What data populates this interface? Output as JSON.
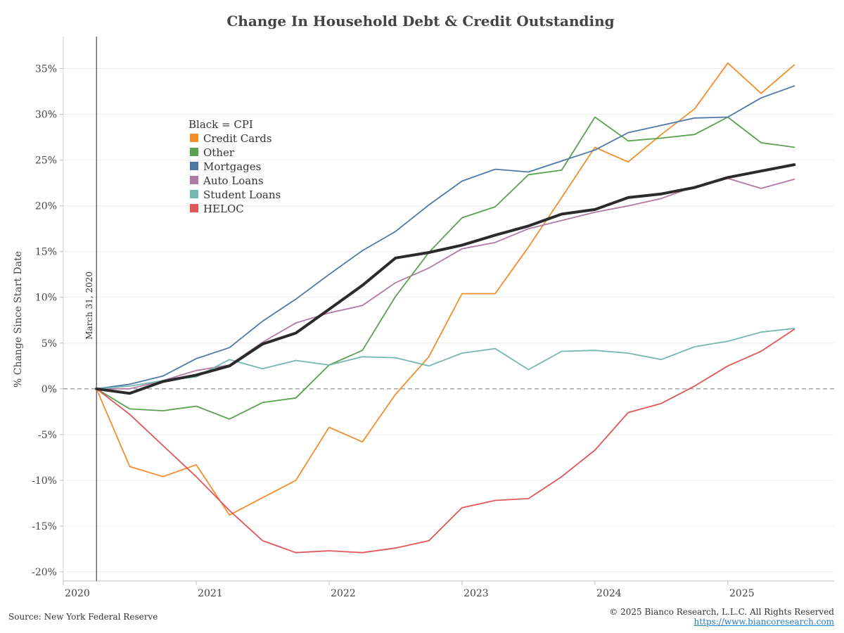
{
  "chart_data": {
    "type": "line",
    "title": "Change In Household Debt & Credit Outstanding",
    "xlabel": "",
    "ylabel": "% Change Since Start Date",
    "x_start": 2020.0,
    "x_end": 2025.8,
    "x_ticks": [
      {
        "value": 2020,
        "label": "2020"
      },
      {
        "value": 2021,
        "label": "2021"
      },
      {
        "value": 2022,
        "label": "2022"
      },
      {
        "value": 2023,
        "label": "2023"
      },
      {
        "value": 2024,
        "label": "2024"
      },
      {
        "value": 2025,
        "label": "2025"
      }
    ],
    "ylim": [
      -21,
      38.5
    ],
    "y_ticks": [
      {
        "value": 35,
        "label": "35%"
      },
      {
        "value": 30,
        "label": "30%"
      },
      {
        "value": 25,
        "label": "25%"
      },
      {
        "value": 20,
        "label": "20%"
      },
      {
        "value": 15,
        "label": "15%"
      },
      {
        "value": 10,
        "label": "10%"
      },
      {
        "value": 5,
        "label": "5%"
      },
      {
        "value": 0,
        "label": "0%"
      },
      {
        "value": -5,
        "label": "-5%"
      },
      {
        "value": -10,
        "label": "-10%"
      },
      {
        "value": -15,
        "label": "-15%"
      },
      {
        "value": -20,
        "label": "-20%"
      }
    ],
    "grid": true,
    "zero_line": "dashed",
    "vertical_marker": {
      "x": 2020.25,
      "label": "March 31, 2020"
    },
    "legend": {
      "placement": "upper-left",
      "header": "Black = CPI"
    },
    "x": [
      2020.25,
      2020.5,
      2020.75,
      2021.0,
      2021.25,
      2021.5,
      2021.75,
      2022.0,
      2022.25,
      2022.5,
      2022.75,
      2023.0,
      2023.25,
      2023.5,
      2023.75,
      2024.0,
      2024.25,
      2024.5,
      2024.75,
      2025.0,
      2025.25,
      2025.5
    ],
    "series": [
      {
        "name": "Credit Cards",
        "color": "#f28e2b",
        "legend": true,
        "values": [
          0,
          -8.5,
          -9.6,
          -8.3,
          -13.8,
          -11.9,
          -10.0,
          -4.2,
          -5.8,
          -0.6,
          3.5,
          10.4,
          10.4,
          15.5,
          20.9,
          26.4,
          24.8,
          27.8,
          30.6,
          35.6,
          32.3,
          35.4
        ]
      },
      {
        "name": "Other",
        "color": "#59a14f",
        "legend": true,
        "values": [
          0,
          -2.2,
          -2.4,
          -1.9,
          -3.3,
          -1.5,
          -1.0,
          2.6,
          4.2,
          10.1,
          14.9,
          18.7,
          19.9,
          23.4,
          23.9,
          29.7,
          27.1,
          27.4,
          27.8,
          29.7,
          26.9,
          26.4
        ]
      },
      {
        "name": "Mortgages",
        "color": "#4e79a7",
        "legend": true,
        "values": [
          0,
          0.5,
          1.4,
          3.3,
          4.5,
          7.4,
          9.8,
          12.5,
          15.1,
          17.2,
          20.1,
          22.7,
          24.0,
          23.7,
          24.9,
          26.1,
          28.0,
          28.8,
          29.6,
          29.7,
          31.8,
          33.1
        ]
      },
      {
        "name": "Auto Loans",
        "color": "#b07aa1",
        "legend": true,
        "values": [
          0,
          0.0,
          0.9,
          2.0,
          2.6,
          5.1,
          7.2,
          8.3,
          9.1,
          11.6,
          13.2,
          15.3,
          16.0,
          17.5,
          18.4,
          19.3,
          20.0,
          20.8,
          22.1,
          23.0,
          21.9,
          22.9
        ]
      },
      {
        "name": "Student Loans",
        "color": "#76b7b2",
        "legend": true,
        "values": [
          0,
          0.3,
          0.9,
          1.3,
          3.2,
          2.2,
          3.1,
          2.6,
          3.5,
          3.4,
          2.5,
          3.9,
          4.4,
          2.1,
          4.1,
          4.2,
          3.9,
          3.2,
          4.6,
          5.2,
          6.2,
          6.6
        ]
      },
      {
        "name": "HELOC",
        "color": "#e15759",
        "legend": true,
        "values": [
          0,
          -2.8,
          -6.2,
          -9.6,
          -13.3,
          -16.6,
          -17.9,
          -17.7,
          -17.9,
          -17.4,
          -16.6,
          -13.0,
          -12.2,
          -12.0,
          -9.6,
          -6.7,
          -2.6,
          -1.6,
          0.3,
          2.5,
          4.1,
          6.5
        ]
      },
      {
        "name": "CPI",
        "color": "#2b2b2b",
        "legend": false,
        "values": [
          0,
          -0.5,
          0.8,
          1.5,
          2.5,
          4.9,
          6.1,
          8.7,
          11.3,
          14.3,
          14.9,
          15.7,
          16.8,
          17.8,
          19.1,
          19.6,
          20.9,
          21.3,
          22.0,
          23.1,
          23.8,
          24.5
        ]
      }
    ]
  },
  "footer": {
    "source": "Source: New York Federal Reserve",
    "copyright": "© 2025 Bianco Research, L.L.C. All Rights Reserved",
    "url": "https://www.biancoresearch.com"
  }
}
